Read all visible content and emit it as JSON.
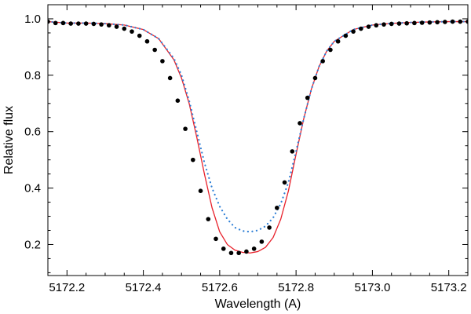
{
  "chart_data": {
    "type": "line",
    "title": "",
    "xlabel": "Wavelength (A)",
    "ylabel": "Relative flux",
    "xlim": [
      5172.15,
      5173.25
    ],
    "ylim": [
      0.09,
      1.05
    ],
    "x_ticks": [
      5172.2,
      5172.4,
      5172.6,
      5172.8,
      5173.0,
      5173.2
    ],
    "x_tick_labels": [
      "5172.2",
      "5172.4",
      "5172.6",
      "5172.8",
      "5173.0",
      "5173.2"
    ],
    "y_ticks": [
      0.2,
      0.4,
      0.6,
      0.8,
      1.0
    ],
    "y_tick_labels": [
      "0.2",
      "0.4",
      "0.6",
      "0.8",
      "1.0"
    ],
    "grid": false,
    "series": [
      {
        "kind": "scatter",
        "style": "points",
        "color": "#000000",
        "x": [
          5172.15,
          5172.17,
          5172.19,
          5172.21,
          5172.23,
          5172.25,
          5172.27,
          5172.29,
          5172.31,
          5172.33,
          5172.35,
          5172.37,
          5172.39,
          5172.41,
          5172.43,
          5172.45,
          5172.47,
          5172.49,
          5172.51,
          5172.53,
          5172.55,
          5172.57,
          5172.59,
          5172.61,
          5172.63,
          5172.65,
          5172.67,
          5172.69,
          5172.71,
          5172.73,
          5172.75,
          5172.77,
          5172.79,
          5172.81,
          5172.83,
          5172.85,
          5172.87,
          5172.89,
          5172.91,
          5172.93,
          5172.95,
          5172.97,
          5172.99,
          5173.01,
          5173.03,
          5173.05,
          5173.07,
          5173.09,
          5173.11,
          5173.13,
          5173.15,
          5173.17,
          5173.19,
          5173.21,
          5173.23,
          5173.25
        ],
        "y": [
          0.99,
          0.985,
          0.985,
          0.983,
          0.983,
          0.983,
          0.982,
          0.98,
          0.977,
          0.972,
          0.965,
          0.955,
          0.94,
          0.92,
          0.89,
          0.85,
          0.79,
          0.71,
          0.61,
          0.5,
          0.39,
          0.29,
          0.22,
          0.185,
          0.17,
          0.17,
          0.175,
          0.185,
          0.21,
          0.26,
          0.33,
          0.42,
          0.53,
          0.63,
          0.72,
          0.79,
          0.85,
          0.89,
          0.92,
          0.94,
          0.955,
          0.965,
          0.972,
          0.977,
          0.98,
          0.982,
          0.983,
          0.984,
          0.985,
          0.986,
          0.987,
          0.988,
          0.989,
          0.99,
          0.99,
          0.99
        ]
      },
      {
        "kind": "line",
        "style": "solid",
        "color": "#e8202a",
        "x": [
          5172.15,
          5172.2,
          5172.25,
          5172.3,
          5172.35,
          5172.4,
          5172.44,
          5172.48,
          5172.5,
          5172.52,
          5172.54,
          5172.56,
          5172.58,
          5172.6,
          5172.62,
          5172.64,
          5172.66,
          5172.68,
          5172.7,
          5172.72,
          5172.74,
          5172.76,
          5172.78,
          5172.8,
          5172.82,
          5172.84,
          5172.86,
          5172.88,
          5172.9,
          5172.95,
          5173.0,
          5173.05,
          5173.1,
          5173.15,
          5173.2,
          5173.25
        ],
        "y": [
          0.99,
          0.985,
          0.985,
          0.983,
          0.978,
          0.962,
          0.93,
          0.855,
          0.79,
          0.7,
          0.58,
          0.45,
          0.33,
          0.245,
          0.2,
          0.18,
          0.172,
          0.17,
          0.175,
          0.19,
          0.225,
          0.29,
          0.39,
          0.52,
          0.645,
          0.75,
          0.83,
          0.885,
          0.92,
          0.962,
          0.978,
          0.984,
          0.987,
          0.989,
          0.99,
          0.99
        ]
      },
      {
        "kind": "line",
        "style": "dotted",
        "color": "#2e7fd6",
        "x": [
          5172.15,
          5172.2,
          5172.25,
          5172.3,
          5172.35,
          5172.4,
          5172.44,
          5172.48,
          5172.5,
          5172.52,
          5172.54,
          5172.56,
          5172.58,
          5172.6,
          5172.62,
          5172.64,
          5172.66,
          5172.68,
          5172.7,
          5172.72,
          5172.74,
          5172.76,
          5172.78,
          5172.8,
          5172.82,
          5172.84,
          5172.86,
          5172.88,
          5172.9,
          5172.95,
          5173.0,
          5173.05,
          5173.1,
          5173.15,
          5173.2,
          5173.25
        ],
        "y": [
          0.99,
          0.985,
          0.985,
          0.983,
          0.978,
          0.962,
          0.93,
          0.86,
          0.8,
          0.71,
          0.6,
          0.49,
          0.4,
          0.335,
          0.29,
          0.26,
          0.248,
          0.245,
          0.25,
          0.265,
          0.295,
          0.345,
          0.42,
          0.53,
          0.645,
          0.75,
          0.83,
          0.885,
          0.92,
          0.962,
          0.978,
          0.984,
          0.987,
          0.989,
          0.99,
          0.99
        ]
      }
    ]
  }
}
